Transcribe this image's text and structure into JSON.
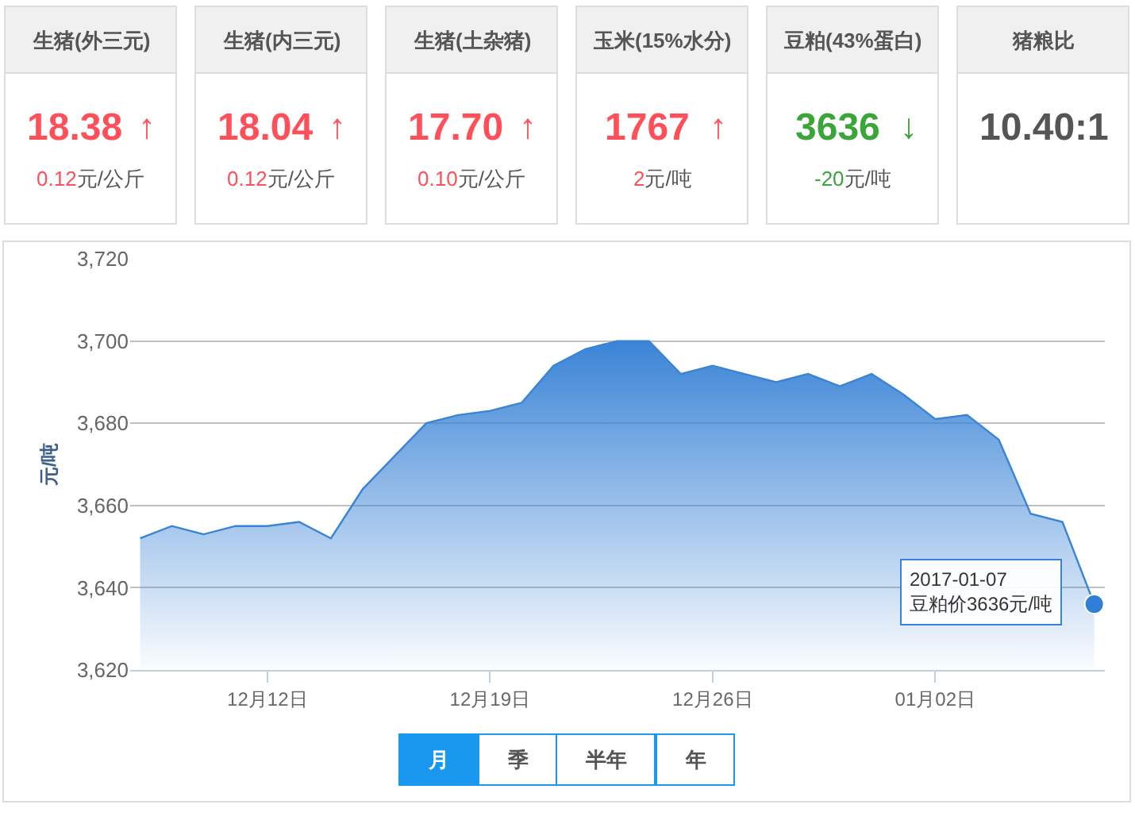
{
  "chart_data": [
    {
      "type": "other",
      "title": "生猪(外三元)",
      "annotations": [
        "18.38",
        "↑",
        "0.12元/公斤"
      ],
      "color": "#ff5059"
    },
    {
      "type": "other",
      "title": "生猪(内三元)",
      "annotations": [
        "18.04",
        "↑",
        "0.12元/公斤"
      ],
      "color": "#ff5059"
    },
    {
      "type": "other",
      "title": "生猪(土杂猪)",
      "annotations": [
        "17.70",
        "↑",
        "0.10元/公斤"
      ],
      "color": "#ff5059"
    },
    {
      "type": "other",
      "title": "玉米(15%水分)",
      "annotations": [
        "1767",
        "↑",
        "2元/吨"
      ],
      "color": "#ff5059"
    },
    {
      "type": "other",
      "title": "豆粕(43%蛋白)",
      "annotations": [
        "3636",
        "↓",
        "-20元/吨"
      ],
      "color": "#3aa63a"
    },
    {
      "type": "other",
      "title": "猪粮比",
      "annotations": [
        "10.40:1"
      ],
      "color": "#555555"
    },
    {
      "type": "area",
      "x": [
        "2016-12-08",
        "2016-12-09",
        "2016-12-10",
        "2016-12-11",
        "2016-12-12",
        "2016-12-13",
        "2016-12-14",
        "2016-12-15",
        "2016-12-16",
        "2016-12-17",
        "2016-12-18",
        "2016-12-19",
        "2016-12-20",
        "2016-12-21",
        "2016-12-22",
        "2016-12-23",
        "2016-12-24",
        "2016-12-25",
        "2016-12-26",
        "2016-12-27",
        "2016-12-28",
        "2016-12-29",
        "2016-12-30",
        "2016-12-31",
        "2017-01-01",
        "2017-01-02",
        "2017-01-03",
        "2017-01-04",
        "2017-01-05",
        "2017-01-06",
        "2017-01-07"
      ],
      "series": [
        {
          "color": "#3a84d6",
          "values": [
            3652,
            3655,
            3653,
            3655,
            3655,
            3656,
            3652,
            3664,
            3672,
            3680,
            3682,
            3683,
            3685,
            3694,
            3698,
            3700,
            3700,
            3692,
            3694,
            3692,
            3690,
            3692,
            3689,
            3692,
            3687,
            3681,
            3682,
            3676,
            3658,
            3656,
            3636
          ]
        },
        {
          "type": "scatter",
          "color": "#2f7ed8",
          "x": [
            "2017-01-07"
          ],
          "values": [
            3636
          ]
        }
      ],
      "ylabel": "元/吨",
      "xlim": [
        "2016-12-07T16:30",
        "2017-01-07T08:00"
      ],
      "xticks": [
        {
          "value": "2016-12-12",
          "label": "12月12日"
        },
        {
          "value": "2016-12-19",
          "label": "12月19日"
        },
        {
          "value": "2016-12-26",
          "label": "12月26日"
        },
        {
          "value": "2017-01-02",
          "label": "01月02日"
        }
      ],
      "ylim": [
        3620,
        3720
      ],
      "yticks": [
        {
          "value": 3620,
          "label": "3,620"
        },
        {
          "value": 3640,
          "label": "3,640"
        },
        {
          "value": 3660,
          "label": "3,660"
        },
        {
          "value": 3680,
          "label": "3,680"
        },
        {
          "value": 3700,
          "label": "3,700"
        },
        {
          "value": 3720,
          "label": "3,720"
        }
      ],
      "grid": "y",
      "annotations": [
        {
          "text": "2017-01-07\n豆粕价3636元/吨",
          "x": "2017-01-07",
          "y": 3636
        }
      ]
    },
    {
      "type": "other",
      "annotations": [
        "月",
        "季",
        "半年",
        "年"
      ],
      "colors": [
        "#1a98f0",
        "#ffffff",
        "#ffffff",
        "#ffffff"
      ]
    }
  ]
}
